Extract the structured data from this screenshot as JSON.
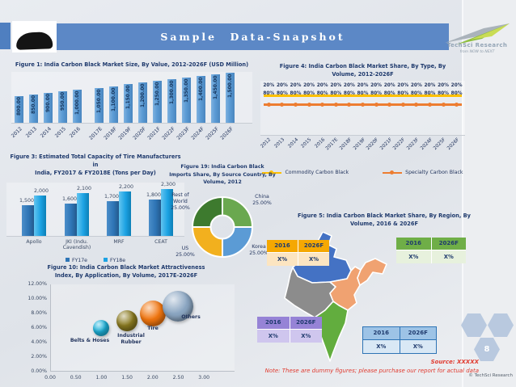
{
  "header": {
    "title": "Sample Data-Snapshot",
    "logo_name": "TechSci Research",
    "logo_tagline": "from NOW to NEXT"
  },
  "footer": {
    "source": "Source: XXXXX",
    "note": "Note: These are dummy figures; please purchase our report for actual data",
    "copyright": "© TechSci Research",
    "page_number": "8"
  },
  "chart_data": [
    {
      "id": "figure1",
      "type": "bar",
      "title": "Figure 1: India Carbon Black Market Size, By Value, 2012-2026F (USD Million)",
      "categories": [
        "2012",
        "2013",
        "2014",
        "2015",
        "2016",
        "2017E",
        "2018F",
        "2019F",
        "2020F",
        "2021F",
        "2022F",
        "2023F",
        "2024F",
        "2025F",
        "2026F"
      ],
      "values": [
        800,
        850,
        900,
        950,
        1000,
        1050,
        1100,
        1150,
        1200,
        1250,
        1300,
        1350,
        1400,
        1450,
        1500
      ],
      "value_labels": [
        "800.00",
        "850.00",
        "900.00",
        "950.00",
        "1,000.00",
        "1,050.00",
        "1,100.00",
        "1,150.00",
        "1,200.00",
        "1,250.00",
        "1,300.00",
        "1,350.00",
        "1,400.00",
        "1,450.00",
        "1,500.00"
      ],
      "bar_color": "#5b9bd5",
      "ylim": [
        0,
        1500
      ]
    },
    {
      "id": "figure4",
      "type": "line",
      "title_line1": "Figure 4: India Carbon Black Market Share, By Type, By",
      "title_line2": "Volume, 2012-2026F",
      "categories": [
        "2012",
        "2013",
        "2014",
        "2015",
        "2016",
        "2017E",
        "2018F",
        "2019F",
        "2020F",
        "2021F",
        "2022F",
        "2023F",
        "2024F",
        "2025F",
        "2026F"
      ],
      "series": [
        {
          "name": "Commodity Carbon Black",
          "color": "#ffc000",
          "values": [
            80,
            80,
            80,
            80,
            80,
            80,
            80,
            80,
            80,
            80,
            80,
            80,
            80,
            80,
            80
          ],
          "data_label": "80%"
        },
        {
          "name": "Specialty Carbon Black",
          "color": "#ed7d31",
          "values": [
            20,
            20,
            20,
            20,
            20,
            20,
            20,
            20,
            20,
            20,
            20,
            20,
            20,
            20,
            20
          ],
          "data_label": "20%"
        }
      ]
    },
    {
      "id": "figure3",
      "type": "bar",
      "title_line1": "Figure 3: Estimated Total Capacity of Tire Manufacturers in",
      "title_line2": "India, FY2017 & FY2018E (Tons per Day)",
      "categories": [
        "Apollo",
        "JKI (Indu. Cavendish)",
        "MRF",
        "CEAT"
      ],
      "series": [
        {
          "name": "FY17e",
          "color": "#2e75b6",
          "values": [
            1500,
            1600,
            1700,
            1800
          ],
          "labels": [
            "1,500",
            "1,600",
            "1,700",
            "1,800"
          ]
        },
        {
          "name": "FY18e",
          "color": "#1ca2e3",
          "values": [
            2000,
            2100,
            2200,
            2300
          ],
          "labels": [
            "2,000",
            "2,100",
            "2,200",
            "2,300"
          ]
        }
      ],
      "ylim": [
        0,
        2300
      ]
    },
    {
      "id": "figure19",
      "type": "pie",
      "title_line1": "Figure 19: India Carbon Black",
      "title_line2": "Imports Share, By Source Country, By",
      "title_line3": "Volume, 2012",
      "slices": [
        {
          "label": "China",
          "value": 25,
          "value_label": "25.00%",
          "color": "#6aa84f"
        },
        {
          "label": "Korea",
          "value": 25,
          "value_label": "25.00%",
          "color": "#5b9bd5"
        },
        {
          "label": "US",
          "value": 25,
          "value_label": "25.00%",
          "color": "#f2b01e"
        },
        {
          "label": "Rest of World",
          "value": 25,
          "value_label": "25.00%",
          "color": "#3d7a2e"
        }
      ]
    },
    {
      "id": "figure5",
      "type": "table",
      "title_line1": "Figure 5: India Carbon Black Market Share, By Region, By",
      "title_line2": "Volume, 2016 & 2026F",
      "regions": {
        "north": {
          "color": "#4472c4"
        },
        "west": {
          "color": "#8c8c8c"
        },
        "east": {
          "color": "#f0a271"
        },
        "south": {
          "color": "#62ad3e"
        }
      },
      "tables": [
        {
          "position": "top-left",
          "header": [
            "2016",
            "2026F"
          ],
          "values": [
            "X%",
            "X%"
          ],
          "header_color": "#f5a802",
          "value_color": "#fce5c1"
        },
        {
          "position": "top-right",
          "header": [
            "2016",
            "2026F"
          ],
          "values": [
            "X%",
            "X%"
          ],
          "header_color": "#6fae47",
          "value_color": "#e7f1dd"
        },
        {
          "position": "bottom-left",
          "header": [
            "2016",
            "2026F"
          ],
          "values": [
            "X%",
            "X%"
          ],
          "header_color": "#9683d6",
          "value_color": "#cfc6ee"
        },
        {
          "position": "bottom-center",
          "header": [
            "2016",
            "2026F"
          ],
          "values": [
            "X%",
            "X%"
          ],
          "header_color": "#9dc3e6",
          "value_color": "#d9e8f5",
          "border_color": "#2e74b5"
        }
      ]
    },
    {
      "id": "figure10",
      "type": "scatter",
      "title_line1": "Figure 10: India Carbon Black Market Attractiveness",
      "title_line2": "Index, By Application, By Volume, 2017E-2026F",
      "points": [
        {
          "label": "Belts & Hoses",
          "x": 1.0,
          "y_pct": 6.0,
          "color": "#1db4dd",
          "r": 10
        },
        {
          "label": "Industrial Rubber",
          "x": 1.5,
          "y_pct": 7.0,
          "color": "#8a7a20",
          "r": 13
        },
        {
          "label": "Tire",
          "x": 2.0,
          "y_pct": 8.0,
          "color": "#f0750f",
          "r": 16
        },
        {
          "label": "Others",
          "x": 2.5,
          "y_pct": 9.0,
          "color": "#8ba6c2",
          "r": 19
        }
      ],
      "x_ticks": [
        "0.00",
        "0.50",
        "1.00",
        "1.50",
        "2.00",
        "2.50",
        "3.00"
      ],
      "y_ticks": [
        "12.00%",
        "10.00%",
        "8.00%",
        "6.00%",
        "4.00%",
        "2.00%",
        "0.00%"
      ],
      "xlim": [
        0,
        3
      ],
      "ylim_pct": [
        0,
        12
      ]
    }
  ]
}
